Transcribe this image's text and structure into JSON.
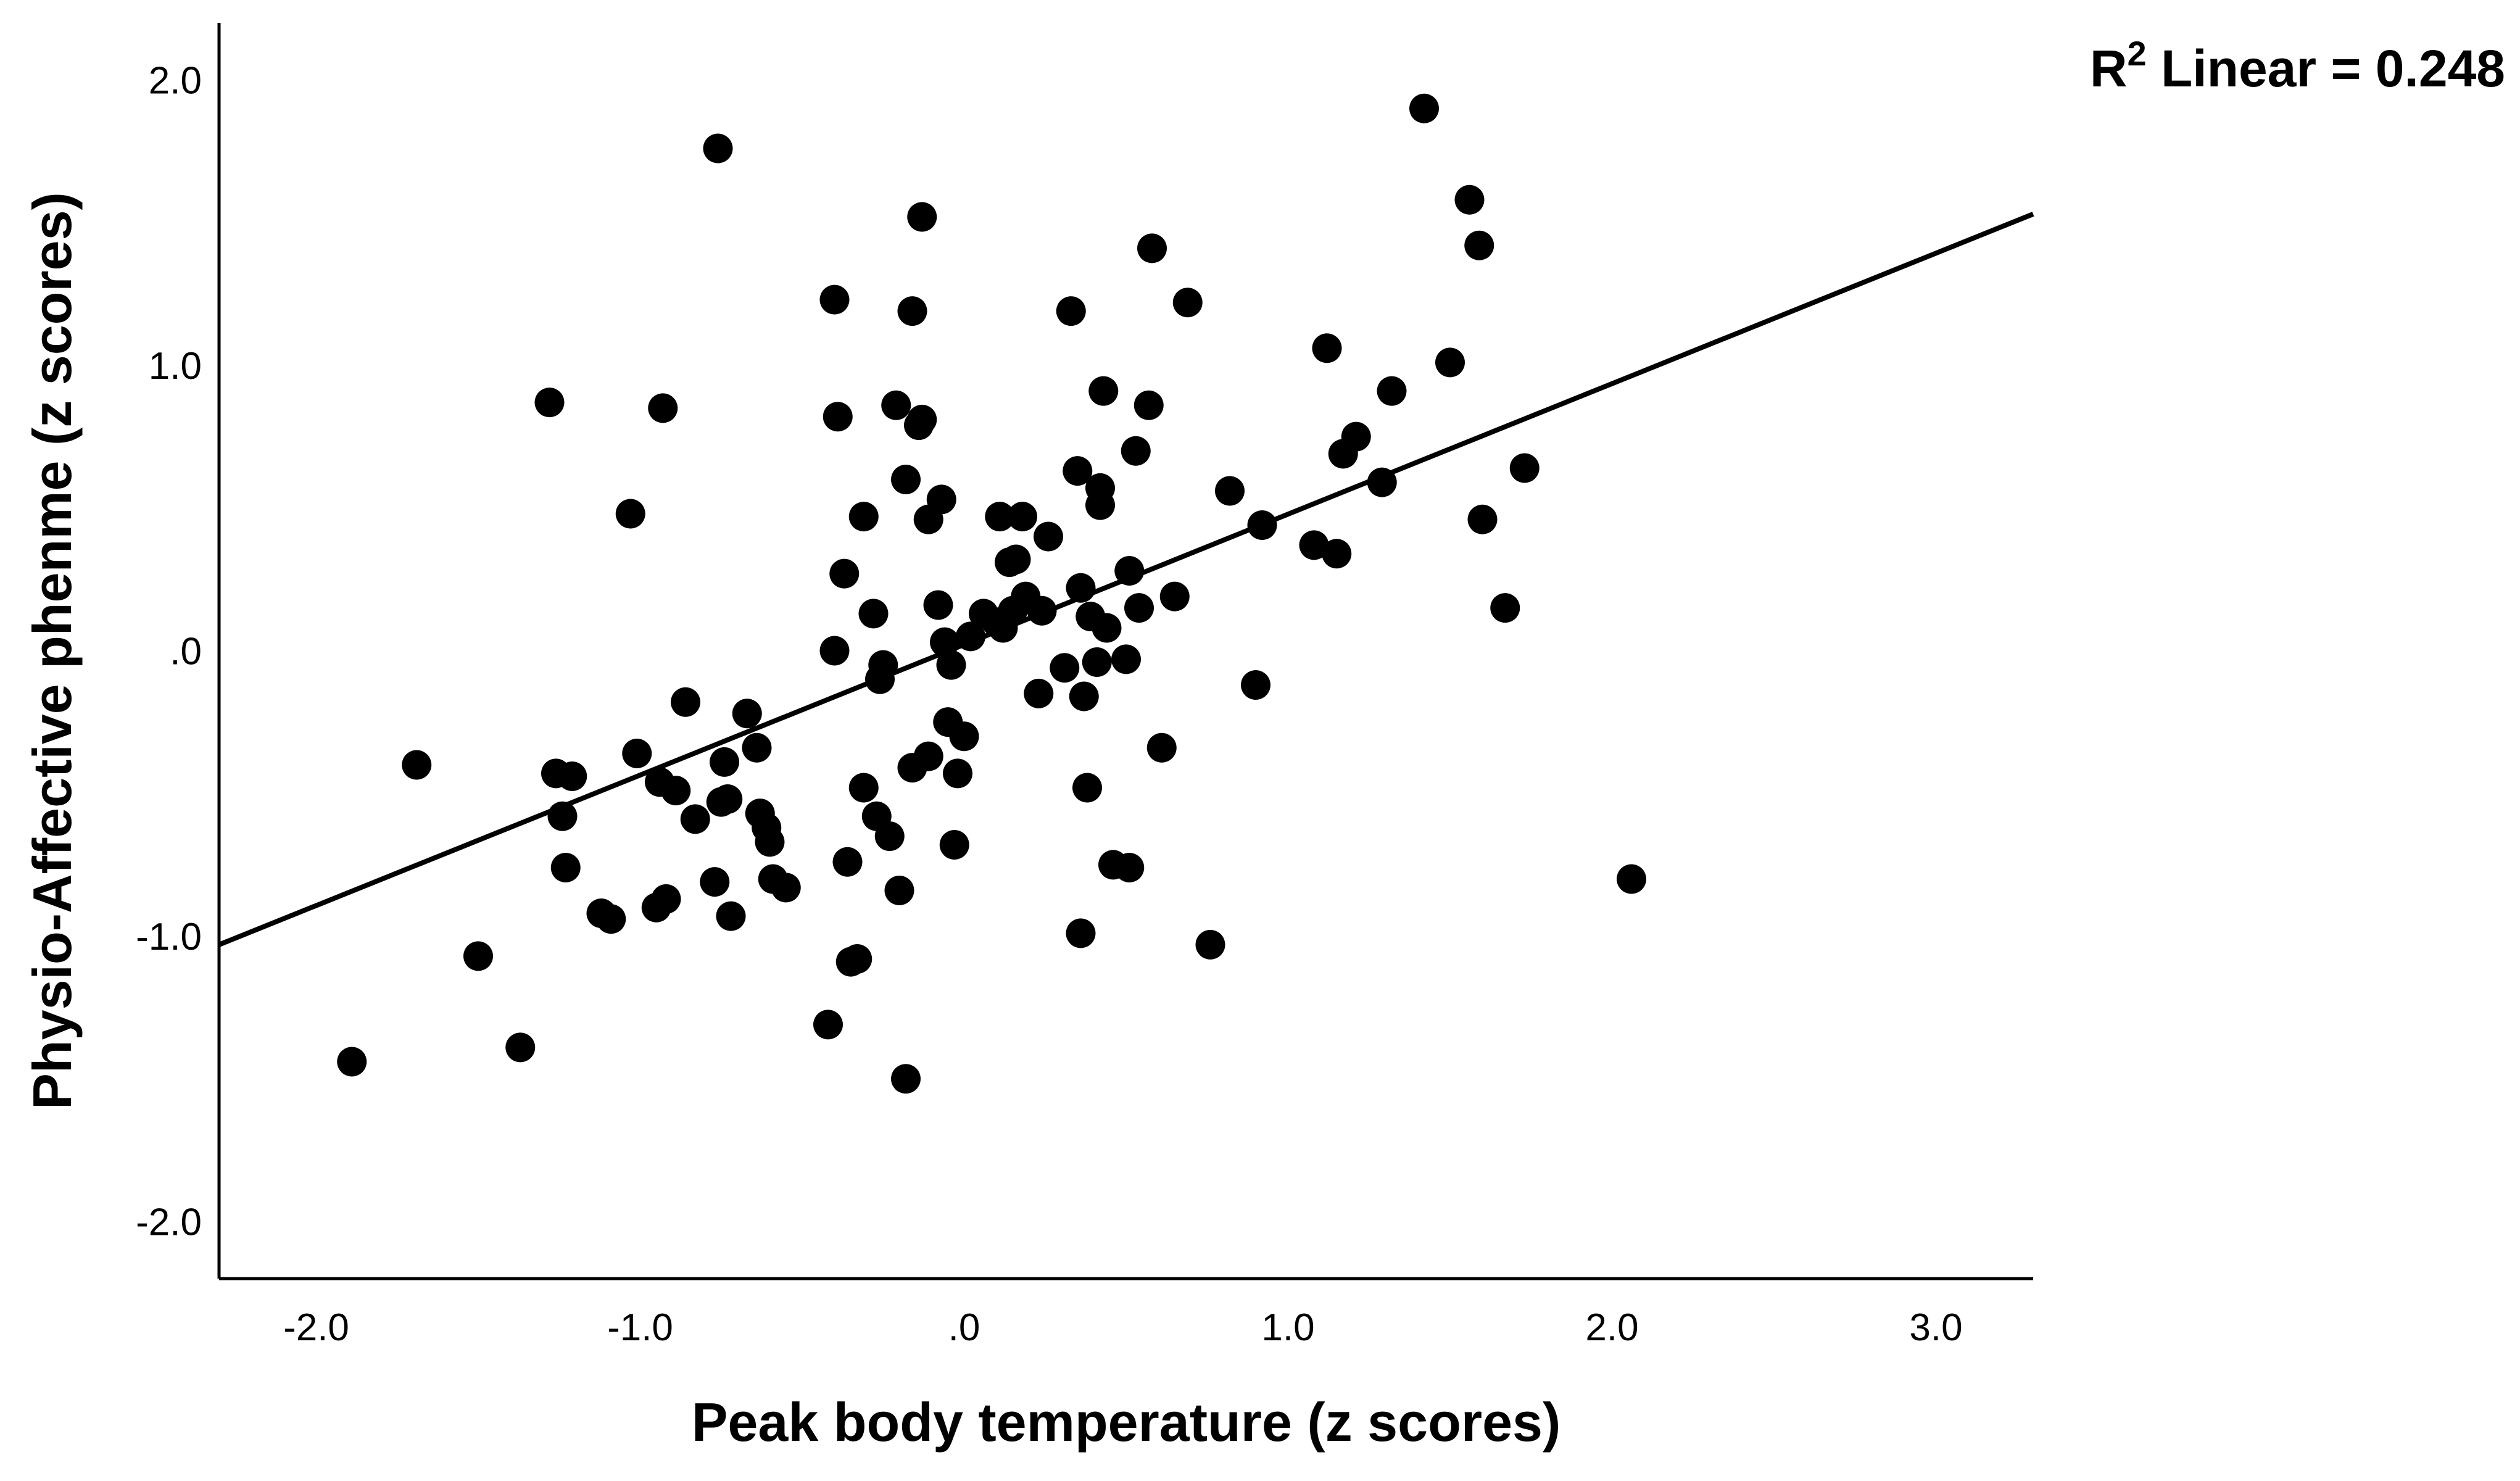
{
  "chart_data": {
    "type": "scatter",
    "xlabel": "Peak body temperature (z scores)",
    "ylabel": "Physio-Affective phenme (z scores)",
    "xlim": [
      -2.3,
      3.3
    ],
    "ylim": [
      -2.2,
      2.2
    ],
    "x_ticks": [
      {
        "value": -2,
        "label": "-2.0"
      },
      {
        "value": -1,
        "label": "-1.0"
      },
      {
        "value": 0,
        "label": ".0"
      },
      {
        "value": 1,
        "label": "1.0"
      },
      {
        "value": 2,
        "label": "2.0"
      },
      {
        "value": 3,
        "label": "3.0"
      }
    ],
    "y_ticks": [
      {
        "value": -2,
        "label": "-2.0"
      },
      {
        "value": -1,
        "label": "-1.0"
      },
      {
        "value": 0,
        "label": ".0"
      },
      {
        "value": 1,
        "label": "1.0"
      },
      {
        "value": 2,
        "label": "2.0"
      }
    ],
    "grid": false,
    "legend": "none",
    "point_color": "#000000",
    "fit_line": {
      "type": "linear",
      "x": [
        -2.3,
        3.3
      ],
      "y": [
        -1.03,
        1.53
      ],
      "color": "#000000"
    },
    "annotation": {
      "r_symbol": "R",
      "superscript": "2",
      "text": " Linear = 0.248"
    },
    "points": [
      {
        "x": -1.89,
        "y": -1.44
      },
      {
        "x": -1.69,
        "y": -0.4
      },
      {
        "x": -1.5,
        "y": -1.07
      },
      {
        "x": -1.37,
        "y": -1.39
      },
      {
        "x": -1.28,
        "y": 0.87
      },
      {
        "x": -1.26,
        "y": -0.43
      },
      {
        "x": -1.24,
        "y": -0.58
      },
      {
        "x": -1.23,
        "y": -0.76
      },
      {
        "x": -1.21,
        "y": -0.44
      },
      {
        "x": -1.12,
        "y": -0.92
      },
      {
        "x": -1.09,
        "y": -0.94
      },
      {
        "x": -1.03,
        "y": 0.48
      },
      {
        "x": -1.01,
        "y": -0.36
      },
      {
        "x": -0.95,
        "y": -0.9
      },
      {
        "x": -0.94,
        "y": -0.46
      },
      {
        "x": -0.93,
        "y": 0.85
      },
      {
        "x": -0.92,
        "y": -0.87
      },
      {
        "x": -0.89,
        "y": -0.49
      },
      {
        "x": -0.86,
        "y": -0.18
      },
      {
        "x": -0.83,
        "y": -0.59
      },
      {
        "x": -0.77,
        "y": -0.81
      },
      {
        "x": -0.76,
        "y": 1.76
      },
      {
        "x": -0.75,
        "y": -0.53
      },
      {
        "x": -0.74,
        "y": -0.39
      },
      {
        "x": -0.73,
        "y": -0.52
      },
      {
        "x": -0.72,
        "y": -0.93
      },
      {
        "x": -0.67,
        "y": -0.22
      },
      {
        "x": -0.64,
        "y": -0.34
      },
      {
        "x": -0.63,
        "y": -0.57
      },
      {
        "x": -0.61,
        "y": -0.62
      },
      {
        "x": -0.6,
        "y": -0.67
      },
      {
        "x": -0.59,
        "y": -0.8
      },
      {
        "x": -0.55,
        "y": -0.83
      },
      {
        "x": -0.42,
        "y": -1.31
      },
      {
        "x": -0.4,
        "y": 0.0
      },
      {
        "x": -0.4,
        "y": 1.23
      },
      {
        "x": -0.39,
        "y": 0.82
      },
      {
        "x": -0.37,
        "y": 0.27
      },
      {
        "x": -0.36,
        "y": -0.74
      },
      {
        "x": -0.35,
        "y": -1.09
      },
      {
        "x": -0.33,
        "y": -1.08
      },
      {
        "x": -0.31,
        "y": 0.47
      },
      {
        "x": -0.31,
        "y": -0.48
      },
      {
        "x": -0.28,
        "y": 0.13
      },
      {
        "x": -0.27,
        "y": -0.58
      },
      {
        "x": -0.26,
        "y": -0.1
      },
      {
        "x": -0.25,
        "y": -0.05
      },
      {
        "x": -0.23,
        "y": -0.65
      },
      {
        "x": -0.21,
        "y": 0.86
      },
      {
        "x": -0.2,
        "y": -0.84
      },
      {
        "x": -0.18,
        "y": 0.6
      },
      {
        "x": -0.18,
        "y": -1.5
      },
      {
        "x": -0.16,
        "y": 1.19
      },
      {
        "x": -0.16,
        "y": -0.41
      },
      {
        "x": -0.14,
        "y": 0.79
      },
      {
        "x": -0.13,
        "y": 1.52
      },
      {
        "x": -0.13,
        "y": 0.81
      },
      {
        "x": -0.11,
        "y": 0.46
      },
      {
        "x": -0.11,
        "y": -0.37
      },
      {
        "x": -0.08,
        "y": 0.16
      },
      {
        "x": -0.07,
        "y": 0.53
      },
      {
        "x": -0.06,
        "y": 0.03
      },
      {
        "x": -0.05,
        "y": -0.25
      },
      {
        "x": -0.04,
        "y": -0.05
      },
      {
        "x": -0.03,
        "y": -0.68
      },
      {
        "x": -0.02,
        "y": -0.43
      },
      {
        "x": 0.0,
        "y": -0.3
      },
      {
        "x": 0.02,
        "y": 0.05
      },
      {
        "x": 0.06,
        "y": 0.13
      },
      {
        "x": 0.1,
        "y": 0.1
      },
      {
        "x": 0.11,
        "y": 0.47
      },
      {
        "x": 0.12,
        "y": 0.08
      },
      {
        "x": 0.14,
        "y": 0.31
      },
      {
        "x": 0.15,
        "y": 0.14
      },
      {
        "x": 0.16,
        "y": 0.32
      },
      {
        "x": 0.18,
        "y": 0.47
      },
      {
        "x": 0.19,
        "y": 0.19
      },
      {
        "x": 0.23,
        "y": -0.15
      },
      {
        "x": 0.24,
        "y": 0.14
      },
      {
        "x": 0.26,
        "y": 0.4
      },
      {
        "x": 0.31,
        "y": -0.06
      },
      {
        "x": 0.33,
        "y": 1.19
      },
      {
        "x": 0.35,
        "y": 0.63
      },
      {
        "x": 0.36,
        "y": 0.22
      },
      {
        "x": 0.36,
        "y": -0.99
      },
      {
        "x": 0.37,
        "y": -0.16
      },
      {
        "x": 0.38,
        "y": -0.48
      },
      {
        "x": 0.39,
        "y": 0.12
      },
      {
        "x": 0.41,
        "y": -0.04
      },
      {
        "x": 0.42,
        "y": 0.51
      },
      {
        "x": 0.42,
        "y": 0.57
      },
      {
        "x": 0.43,
        "y": 0.91
      },
      {
        "x": 0.44,
        "y": 0.08
      },
      {
        "x": 0.46,
        "y": -0.75
      },
      {
        "x": 0.5,
        "y": -0.03
      },
      {
        "x": 0.51,
        "y": 0.28
      },
      {
        "x": 0.51,
        "y": -0.76
      },
      {
        "x": 0.53,
        "y": 0.7
      },
      {
        "x": 0.54,
        "y": 0.15
      },
      {
        "x": 0.57,
        "y": 0.86
      },
      {
        "x": 0.58,
        "y": 1.41
      },
      {
        "x": 0.61,
        "y": -0.34
      },
      {
        "x": 0.65,
        "y": 0.19
      },
      {
        "x": 0.69,
        "y": 1.22
      },
      {
        "x": 0.76,
        "y": -1.03
      },
      {
        "x": 0.82,
        "y": 0.56
      },
      {
        "x": 0.9,
        "y": -0.12
      },
      {
        "x": 0.92,
        "y": 0.44
      },
      {
        "x": 1.08,
        "y": 0.37
      },
      {
        "x": 1.12,
        "y": 1.06
      },
      {
        "x": 1.15,
        "y": 0.34
      },
      {
        "x": 1.17,
        "y": 0.69
      },
      {
        "x": 1.21,
        "y": 0.75
      },
      {
        "x": 1.29,
        "y": 0.59
      },
      {
        "x": 1.32,
        "y": 0.91
      },
      {
        "x": 1.42,
        "y": 1.9
      },
      {
        "x": 1.5,
        "y": 1.01
      },
      {
        "x": 1.56,
        "y": 1.58
      },
      {
        "x": 1.59,
        "y": 1.42
      },
      {
        "x": 1.6,
        "y": 0.46
      },
      {
        "x": 1.67,
        "y": 0.15
      },
      {
        "x": 1.73,
        "y": 0.64
      },
      {
        "x": 2.06,
        "y": -0.8
      }
    ]
  }
}
